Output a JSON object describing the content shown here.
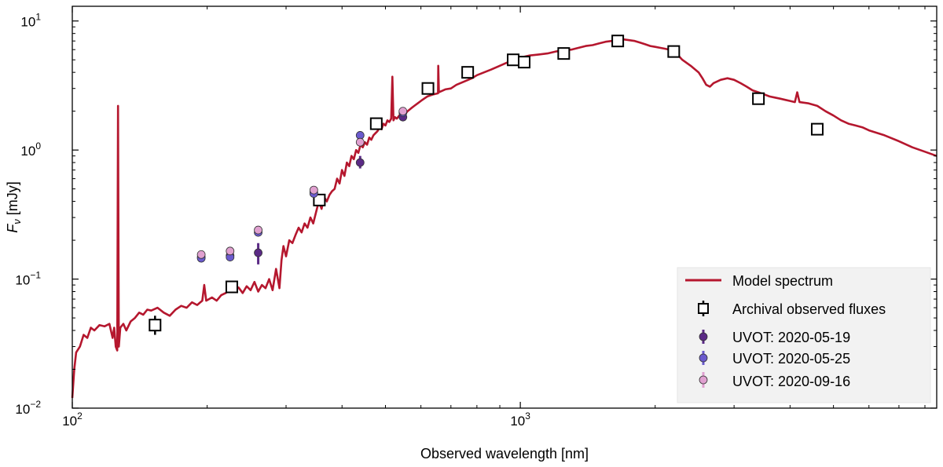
{
  "chart_data": {
    "type": "scatter",
    "xlabel": "Observed wavelength [nm]",
    "ylabel_main": "F",
    "ylabel_sub": "ν",
    "ylabel_unit": " [mJy]",
    "x_scale": "log",
    "y_scale": "log",
    "xlim": [
      100,
      8500
    ],
    "ylim": [
      0.01,
      13
    ],
    "x_ticks": [
      {
        "value": 100,
        "base": "10",
        "exp": "2"
      },
      {
        "value": 1000,
        "base": "10",
        "exp": "3"
      }
    ],
    "y_ticks": [
      {
        "value": 0.01,
        "base": "10",
        "exp": "−2"
      },
      {
        "value": 0.1,
        "base": "10",
        "exp": "−1"
      },
      {
        "value": 1,
        "base": "10",
        "exp": "0"
      },
      {
        "value": 10,
        "base": "10",
        "exp": "1"
      }
    ],
    "legend": {
      "position": "lower-right",
      "entries": [
        {
          "label": "Model spectrum",
          "kind": "line",
          "color": "#b5172e"
        },
        {
          "label": "Archival observed fluxes",
          "kind": "square",
          "color": "#000000"
        },
        {
          "label": "UVOT: 2020-05-19",
          "kind": "circle",
          "color": "#5b2a86"
        },
        {
          "label": "UVOT: 2020-05-25",
          "kind": "circle",
          "color": "#6a5acd"
        },
        {
          "label": "UVOT: 2020-09-16",
          "kind": "circle",
          "color": "#e0a0d0"
        }
      ]
    },
    "series": [
      {
        "name": "Model spectrum",
        "kind": "line",
        "color": "#b5172e",
        "points": [
          [
            100,
            0.012
          ],
          [
            101,
            0.02
          ],
          [
            102,
            0.027
          ],
          [
            104,
            0.03
          ],
          [
            106,
            0.037
          ],
          [
            108,
            0.035
          ],
          [
            110,
            0.042
          ],
          [
            112,
            0.04
          ],
          [
            115,
            0.044
          ],
          [
            118,
            0.043
          ],
          [
            121,
            0.045
          ],
          [
            123,
            0.035
          ],
          [
            124,
            0.042
          ],
          [
            125,
            0.03
          ],
          [
            126,
            0.028
          ],
          [
            126.5,
            2.2
          ],
          [
            127,
            0.03
          ],
          [
            128,
            0.042
          ],
          [
            130,
            0.045
          ],
          [
            132,
            0.04
          ],
          [
            135,
            0.047
          ],
          [
            138,
            0.05
          ],
          [
            141,
            0.055
          ],
          [
            144,
            0.053
          ],
          [
            147,
            0.058
          ],
          [
            150,
            0.057
          ],
          [
            155,
            0.06
          ],
          [
            160,
            0.055
          ],
          [
            165,
            0.052
          ],
          [
            170,
            0.058
          ],
          [
            175,
            0.062
          ],
          [
            180,
            0.06
          ],
          [
            185,
            0.066
          ],
          [
            190,
            0.063
          ],
          [
            195,
            0.068
          ],
          [
            197,
            0.09
          ],
          [
            199,
            0.068
          ],
          [
            205,
            0.072
          ],
          [
            210,
            0.068
          ],
          [
            215,
            0.075
          ],
          [
            220,
            0.078
          ],
          [
            225,
            0.082
          ],
          [
            230,
            0.08
          ],
          [
            235,
            0.086
          ],
          [
            240,
            0.078
          ],
          [
            245,
            0.088
          ],
          [
            250,
            0.082
          ],
          [
            255,
            0.095
          ],
          [
            260,
            0.08
          ],
          [
            265,
            0.09
          ],
          [
            270,
            0.085
          ],
          [
            275,
            0.1
          ],
          [
            280,
            0.082
          ],
          [
            285,
            0.12
          ],
          [
            290,
            0.085
          ],
          [
            293,
            0.14
          ],
          [
            296,
            0.18
          ],
          [
            300,
            0.15
          ],
          [
            305,
            0.2
          ],
          [
            310,
            0.19
          ],
          [
            315,
            0.22
          ],
          [
            320,
            0.25
          ],
          [
            325,
            0.23
          ],
          [
            330,
            0.27
          ],
          [
            335,
            0.25
          ],
          [
            340,
            0.3
          ],
          [
            345,
            0.27
          ],
          [
            350,
            0.33
          ],
          [
            355,
            0.4
          ],
          [
            360,
            0.35
          ],
          [
            365,
            0.43
          ],
          [
            370,
            0.4
          ],
          [
            375,
            0.45
          ],
          [
            380,
            0.48
          ],
          [
            385,
            0.5
          ],
          [
            390,
            0.6
          ],
          [
            395,
            0.55
          ],
          [
            400,
            0.7
          ],
          [
            405,
            0.63
          ],
          [
            410,
            0.8
          ],
          [
            415,
            0.75
          ],
          [
            420,
            0.9
          ],
          [
            425,
            0.85
          ],
          [
            430,
            1.0
          ],
          [
            435,
            0.95
          ],
          [
            440,
            1.1
          ],
          [
            445,
            1.05
          ],
          [
            450,
            1.15
          ],
          [
            455,
            1.1
          ],
          [
            460,
            1.25
          ],
          [
            465,
            1.2
          ],
          [
            470,
            1.3
          ],
          [
            475,
            1.35
          ],
          [
            480,
            1.4
          ],
          [
            485,
            1.5
          ],
          [
            490,
            1.45
          ],
          [
            495,
            1.6
          ],
          [
            500,
            1.55
          ],
          [
            505,
            1.7
          ],
          [
            510,
            1.65
          ],
          [
            515,
            1.75
          ],
          [
            518,
            3.7
          ],
          [
            521,
            1.7
          ],
          [
            525,
            1.8
          ],
          [
            530,
            1.75
          ],
          [
            540,
            1.9
          ],
          [
            550,
            1.85
          ],
          [
            560,
            2.0
          ],
          [
            570,
            2.1
          ],
          [
            580,
            2.2
          ],
          [
            590,
            2.3
          ],
          [
            600,
            2.4
          ],
          [
            610,
            2.5
          ],
          [
            620,
            2.6
          ],
          [
            640,
            2.7
          ],
          [
            655,
            2.75
          ],
          [
            656,
            4.5
          ],
          [
            658,
            2.8
          ],
          [
            680,
            2.95
          ],
          [
            700,
            3.0
          ],
          [
            720,
            3.2
          ],
          [
            750,
            3.4
          ],
          [
            780,
            3.6
          ],
          [
            800,
            3.8
          ],
          [
            830,
            4.0
          ],
          [
            860,
            4.2
          ],
          [
            900,
            4.5
          ],
          [
            940,
            4.8
          ],
          [
            980,
            5.0
          ],
          [
            1000,
            5.2
          ],
          [
            1050,
            5.4
          ],
          [
            1100,
            5.5
          ],
          [
            1150,
            5.6
          ],
          [
            1200,
            5.8
          ],
          [
            1250,
            5.9
          ],
          [
            1300,
            6.0
          ],
          [
            1350,
            6.2
          ],
          [
            1400,
            6.4
          ],
          [
            1450,
            6.5
          ],
          [
            1500,
            6.7
          ],
          [
            1550,
            6.9
          ],
          [
            1600,
            7.0
          ],
          [
            1650,
            7.2
          ],
          [
            1700,
            7.2
          ],
          [
            1750,
            7.1
          ],
          [
            1800,
            7.0
          ],
          [
            1850,
            6.8
          ],
          [
            1900,
            6.6
          ],
          [
            1950,
            6.4
          ],
          [
            2000,
            6.3
          ],
          [
            2050,
            6.2
          ],
          [
            2100,
            6.1
          ],
          [
            2200,
            5.9
          ],
          [
            2300,
            5.0
          ],
          [
            2400,
            4.5
          ],
          [
            2500,
            4.0
          ],
          [
            2550,
            3.6
          ],
          [
            2600,
            3.2
          ],
          [
            2650,
            3.1
          ],
          [
            2700,
            3.3
          ],
          [
            2800,
            3.5
          ],
          [
            2900,
            3.6
          ],
          [
            3000,
            3.5
          ],
          [
            3100,
            3.3
          ],
          [
            3200,
            3.1
          ],
          [
            3300,
            2.9
          ],
          [
            3400,
            2.8
          ],
          [
            3500,
            2.7
          ],
          [
            3600,
            2.6
          ],
          [
            3700,
            2.55
          ],
          [
            3800,
            2.5
          ],
          [
            3900,
            2.45
          ],
          [
            4000,
            2.4
          ],
          [
            4100,
            2.35
          ],
          [
            4150,
            2.8
          ],
          [
            4200,
            2.35
          ],
          [
            4400,
            2.3
          ],
          [
            4600,
            2.2
          ],
          [
            4800,
            2.0
          ],
          [
            5000,
            1.85
          ],
          [
            5200,
            1.7
          ],
          [
            5400,
            1.6
          ],
          [
            5600,
            1.55
          ],
          [
            5800,
            1.5
          ],
          [
            6000,
            1.42
          ],
          [
            6500,
            1.3
          ],
          [
            7000,
            1.17
          ],
          [
            7500,
            1.05
          ],
          [
            8000,
            0.97
          ],
          [
            8500,
            0.9
          ]
        ]
      },
      {
        "name": "Archival observed fluxes",
        "kind": "square",
        "color": "#000000",
        "points": [
          {
            "x": 153,
            "y": 0.044,
            "ylo": 0.037,
            "yhi": 0.052
          },
          {
            "x": 227,
            "y": 0.087,
            "ylo": 0.081,
            "yhi": 0.093
          },
          {
            "x": 356,
            "y": 0.41,
            "ylo": 0.38,
            "yhi": 0.44
          },
          {
            "x": 477,
            "y": 1.6,
            "ylo": 1.52,
            "yhi": 1.68
          },
          {
            "x": 622,
            "y": 3.0,
            "ylo": 2.85,
            "yhi": 3.15
          },
          {
            "x": 763,
            "y": 4.0,
            "ylo": 3.8,
            "yhi": 4.2
          },
          {
            "x": 964,
            "y": 5.0,
            "ylo": 4.75,
            "yhi": 5.25
          },
          {
            "x": 1020,
            "y": 4.8,
            "ylo": 4.56,
            "yhi": 5.04
          },
          {
            "x": 1250,
            "y": 5.6,
            "ylo": 5.32,
            "yhi": 5.88
          },
          {
            "x": 1650,
            "y": 7.0,
            "ylo": 6.65,
            "yhi": 7.35
          },
          {
            "x": 2200,
            "y": 5.8,
            "ylo": 5.2,
            "yhi": 6.4
          },
          {
            "x": 3400,
            "y": 2.5,
            "ylo": 2.35,
            "yhi": 2.65
          },
          {
            "x": 4600,
            "y": 1.45,
            "ylo": 1.35,
            "yhi": 1.55
          }
        ]
      },
      {
        "name": "UVOT: 2020-05-19",
        "kind": "circle",
        "color": "#5b2a86",
        "points": [
          {
            "x": 194,
            "y": 0.148,
            "ylo": 0.14,
            "yhi": 0.156
          },
          {
            "x": 225,
            "y": 0.152,
            "ylo": 0.144,
            "yhi": 0.16
          },
          {
            "x": 260,
            "y": 0.16,
            "ylo": 0.13,
            "yhi": 0.19
          },
          {
            "x": 346,
            "y": 0.47,
            "ylo": 0.45,
            "yhi": 0.49
          },
          {
            "x": 439,
            "y": 0.8,
            "ylo": 0.72,
            "yhi": 0.9
          },
          {
            "x": 547,
            "y": 1.8,
            "ylo": 1.7,
            "yhi": 1.9
          }
        ]
      },
      {
        "name": "UVOT: 2020-05-25",
        "kind": "circle",
        "color": "#6a5acd",
        "points": [
          {
            "x": 194,
            "y": 0.145,
            "ylo": 0.138,
            "yhi": 0.152
          },
          {
            "x": 225,
            "y": 0.148,
            "ylo": 0.14,
            "yhi": 0.156
          },
          {
            "x": 260,
            "y": 0.23,
            "ylo": 0.215,
            "yhi": 0.245
          },
          {
            "x": 346,
            "y": 0.46,
            "ylo": 0.44,
            "yhi": 0.48
          },
          {
            "x": 439,
            "y": 1.3,
            "ylo": 1.2,
            "yhi": 1.4
          },
          {
            "x": 547,
            "y": 1.95,
            "ylo": 1.85,
            "yhi": 2.05
          }
        ]
      },
      {
        "name": "UVOT: 2020-09-16",
        "kind": "circle",
        "color": "#e0a0d0",
        "points": [
          {
            "x": 194,
            "y": 0.155,
            "ylo": 0.148,
            "yhi": 0.162
          },
          {
            "x": 225,
            "y": 0.165,
            "ylo": 0.157,
            "yhi": 0.173
          },
          {
            "x": 260,
            "y": 0.24,
            "ylo": 0.225,
            "yhi": 0.255
          },
          {
            "x": 346,
            "y": 0.49,
            "ylo": 0.47,
            "yhi": 0.51
          },
          {
            "x": 439,
            "y": 1.15,
            "ylo": 1.08,
            "yhi": 1.22
          },
          {
            "x": 547,
            "y": 2.0,
            "ylo": 1.9,
            "yhi": 2.1
          }
        ]
      }
    ]
  }
}
